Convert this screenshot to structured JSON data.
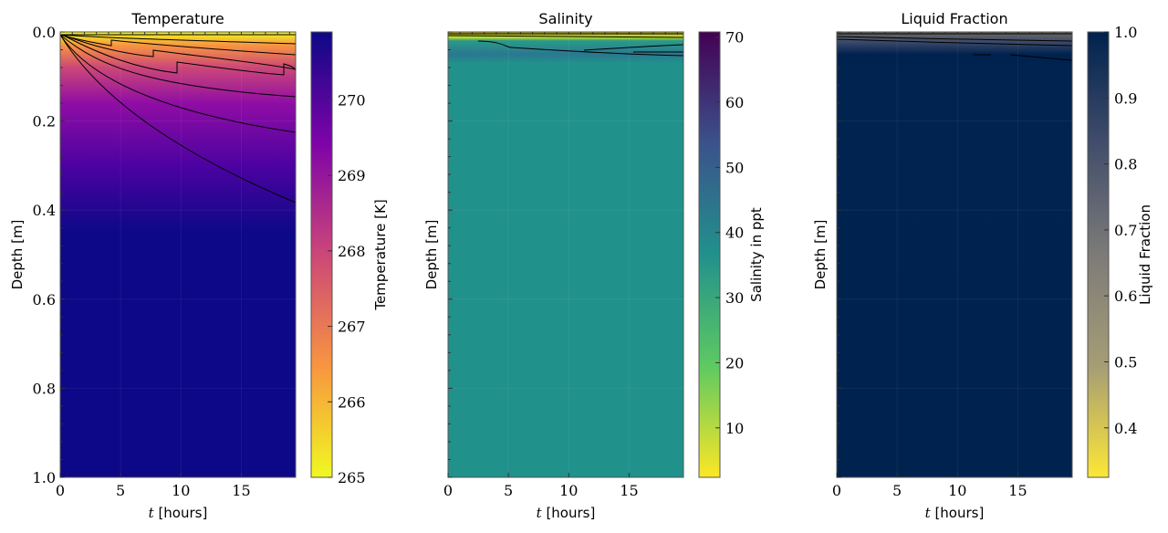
{
  "chart_data": [
    {
      "type": "heatmap",
      "title": "Temperature",
      "xlabel_var": "t",
      "xlabel_unit": "[hours]",
      "ylabel": "Depth",
      "ylabel_unit": "[m]",
      "xlim": [
        0,
        19.5
      ],
      "ylim": [
        1.0,
        0.0
      ],
      "xticks": [
        "0",
        "5",
        "10",
        "15"
      ],
      "yticks": [
        "0.0",
        "0.2",
        "0.4",
        "0.6",
        "0.8",
        "1.0"
      ],
      "colorbar": {
        "label": "Temperature [K]",
        "range": [
          265,
          270.9
        ],
        "ticks": [
          "265",
          "266",
          "267",
          "268",
          "269",
          "270"
        ],
        "colormap": "plasma",
        "colors": [
          "#f0f921",
          "#f89540",
          "#cc4778",
          "#7e03a8",
          "#0d0887"
        ]
      },
      "contours": true,
      "description_values": {
        "surface": 265,
        "bulk": 270.9
      }
    },
    {
      "type": "heatmap",
      "title": "Salinity",
      "xlabel_var": "t",
      "xlabel_unit": "[hours]",
      "ylabel": "Depth",
      "ylabel_unit": "[m]",
      "xlim": [
        0,
        19.5
      ],
      "ylim": [
        1.0,
        0.0
      ],
      "xticks": [
        "0",
        "5",
        "10",
        "15"
      ],
      "colorbar": {
        "label": "Salinity in ppt",
        "range": [
          2.4,
          70.8
        ],
        "ticks": [
          "10",
          "20",
          "30",
          "40",
          "50",
          "60",
          "70"
        ],
        "colormap": "viridis_r",
        "colors": [
          "#fde725",
          "#5ec962",
          "#21918c",
          "#3b528b",
          "#440154"
        ]
      },
      "contours": true,
      "description_values": {
        "bulk": 34
      }
    },
    {
      "type": "heatmap",
      "title": "Liquid Fraction",
      "xlabel_var": "t",
      "xlabel_unit": "[hours]",
      "ylabel": "Depth",
      "ylabel_unit": "[m]",
      "xlim": [
        0,
        19.5
      ],
      "ylim": [
        1.0,
        0.0
      ],
      "xticks": [
        "0",
        "5",
        "10",
        "15"
      ],
      "colorbar": {
        "label": "Liquid Fraction",
        "range": [
          0.325,
          1.0
        ],
        "ticks": [
          "0.4",
          "0.5",
          "0.6",
          "0.7",
          "0.8",
          "0.9",
          "1.0"
        ],
        "colormap": "cividis_r",
        "colors": [
          "#fde737",
          "#a69d75",
          "#7c7b78",
          "#414d6b",
          "#00224e"
        ]
      },
      "contours": true,
      "description_values": {
        "bulk": 1.0
      }
    }
  ]
}
